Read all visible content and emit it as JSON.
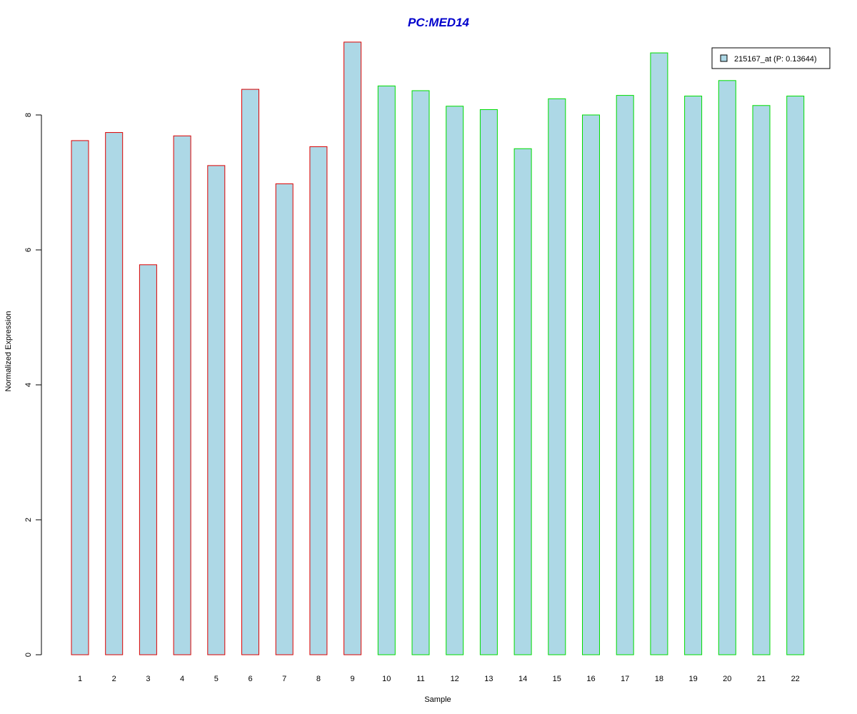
{
  "chart_data": {
    "type": "bar",
    "title": "PC:MED14",
    "xlabel": "Sample",
    "ylabel": "Normalized Expression",
    "ylim": [
      0,
      9.2
    ],
    "yticks": [
      0,
      2,
      4,
      6,
      8
    ],
    "categories": [
      "1",
      "2",
      "3",
      "4",
      "5",
      "6",
      "7",
      "8",
      "9",
      "10",
      "11",
      "12",
      "13",
      "14",
      "15",
      "16",
      "17",
      "18",
      "19",
      "20",
      "21",
      "22"
    ],
    "values": [
      7.62,
      7.74,
      5.78,
      7.69,
      7.25,
      8.38,
      6.98,
      7.53,
      9.08,
      8.43,
      8.36,
      8.13,
      8.08,
      7.5,
      8.24,
      8.0,
      8.29,
      8.92,
      8.28,
      8.51,
      8.14,
      8.28
    ],
    "group_border_colors": [
      "#dd0000",
      "#dd0000",
      "#dd0000",
      "#dd0000",
      "#dd0000",
      "#dd0000",
      "#dd0000",
      "#dd0000",
      "#dd0000",
      "#00dd00",
      "#00dd00",
      "#00dd00",
      "#00dd00",
      "#00dd00",
      "#00dd00",
      "#00dd00",
      "#00dd00",
      "#00dd00",
      "#00dd00",
      "#00dd00",
      "#00dd00",
      "#00dd00"
    ],
    "fill_color": "#add8e6",
    "title_color": "#0000cc",
    "legend": {
      "entries": [
        "215167_at (P: 0.13644)"
      ],
      "position": "top-right"
    },
    "grid": false
  }
}
